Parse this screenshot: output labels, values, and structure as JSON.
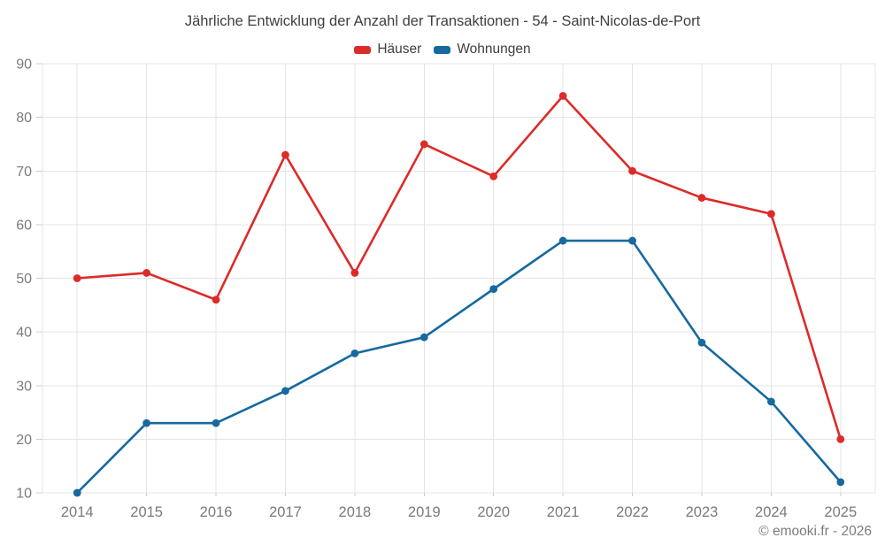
{
  "chart": {
    "attribution": "© emooki.fr - 2026"
  },
  "chart_data": {
    "type": "line",
    "title": "Jährliche Entwicklung der Anzahl der Transaktionen - 54 - Saint-Nicolas-de-Port",
    "categories": [
      "2014",
      "2015",
      "2016",
      "2017",
      "2018",
      "2019",
      "2020",
      "2021",
      "2022",
      "2023",
      "2024",
      "2025"
    ],
    "series": [
      {
        "name": "Häuser",
        "color": "#dc2b28",
        "values": [
          50,
          51,
          46,
          73,
          51,
          75,
          69,
          84,
          70,
          65,
          62,
          20
        ]
      },
      {
        "name": "Wohnungen",
        "color": "#17699f",
        "values": [
          10,
          23,
          23,
          29,
          36,
          39,
          48,
          57,
          57,
          38,
          27,
          12
        ]
      }
    ],
    "xlabel": "",
    "ylabel": "",
    "ylim": [
      10,
      90
    ],
    "ytick_step": 10,
    "grid": true,
    "legend_position": "top",
    "grid_color": "#e4e4e4",
    "tick_color": "#cccccc",
    "axis_label_color": "#7a7a7a"
  }
}
